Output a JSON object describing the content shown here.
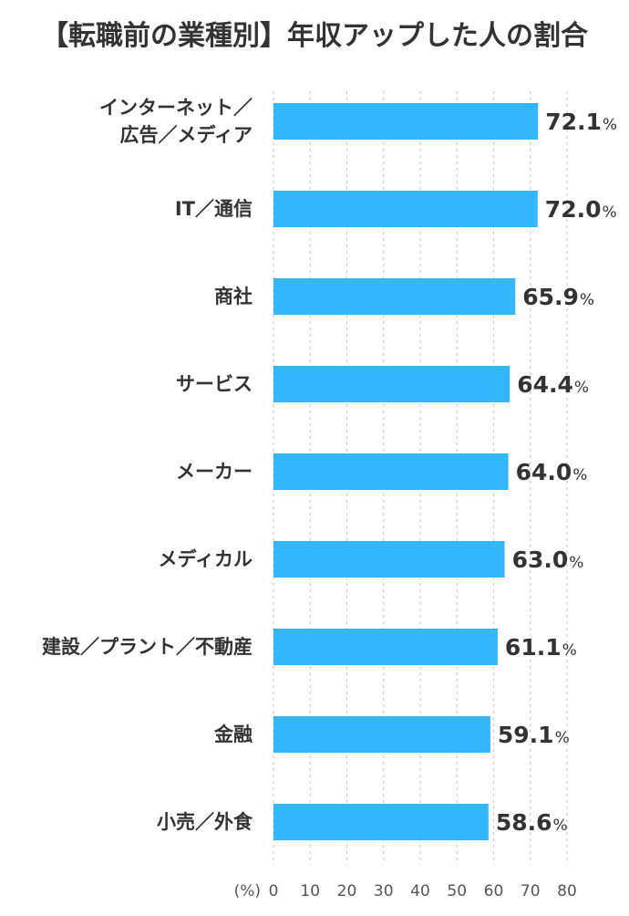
{
  "chart_data": {
    "type": "bar",
    "orientation": "horizontal",
    "title": "【転職前の業種別】年収アップした人の割合",
    "categories": [
      [
        "インターネット／",
        "広告／メディア"
      ],
      [
        "IT／通信"
      ],
      [
        "商社"
      ],
      [
        "サービス"
      ],
      [
        "メーカー"
      ],
      [
        "メディカル"
      ],
      [
        "建設／プラント／不動産"
      ],
      [
        "金融"
      ],
      [
        "小売／外食"
      ]
    ],
    "values": [
      72.1,
      72.0,
      65.9,
      64.4,
      64.0,
      63.0,
      61.1,
      59.1,
      58.6
    ],
    "value_labels": [
      "72.1",
      "72.0",
      "65.9",
      "64.4",
      "64.0",
      "63.0",
      "61.1",
      "59.1",
      "58.6"
    ],
    "value_unit": "%",
    "x_unit_label": "(%)",
    "xlim": [
      0,
      80
    ],
    "xticks": [
      "0",
      "10",
      "20",
      "30",
      "40",
      "50",
      "60",
      "70",
      "80"
    ],
    "grid": "vertical dashed",
    "bar_color": "#33b6fb",
    "grid_color": "#cccccc"
  }
}
